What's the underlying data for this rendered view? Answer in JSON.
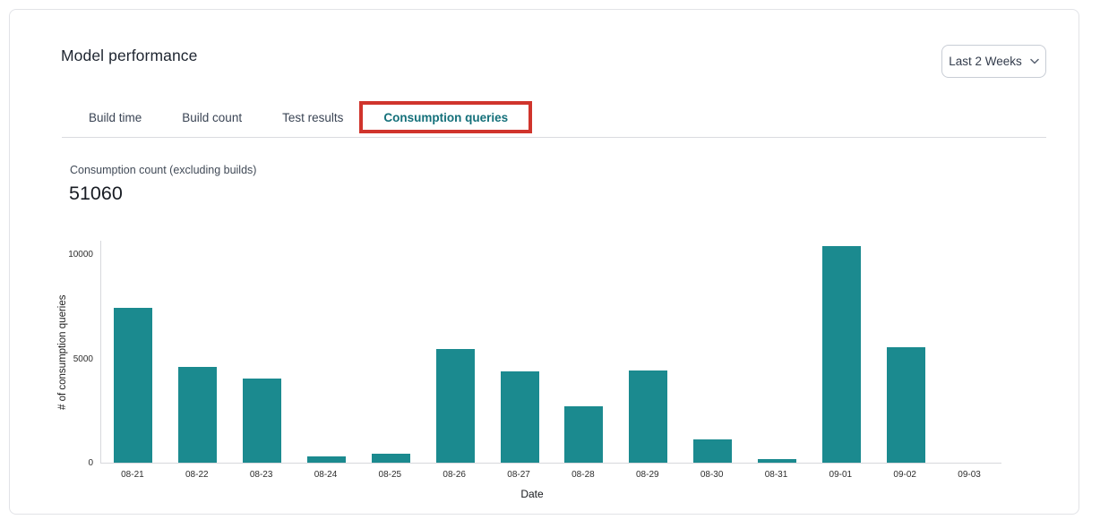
{
  "header": {
    "title": "Model performance",
    "time_range": {
      "value": "Last 2 Weeks",
      "icon": "chevron-down"
    }
  },
  "tabs": [
    {
      "label": "Build time",
      "active": false
    },
    {
      "label": "Build count",
      "active": false
    },
    {
      "label": "Test results",
      "active": false
    },
    {
      "label": "Consumption queries",
      "active": true,
      "annotated": true
    }
  ],
  "metric": {
    "label": "Consumption count (excluding builds)",
    "value": "51060"
  },
  "chart_data": {
    "type": "bar",
    "title": "",
    "xlabel": "Date",
    "ylabel": "# of consumption queries",
    "categories": [
      "08-21",
      "08-22",
      "08-23",
      "08-24",
      "08-25",
      "08-26",
      "08-27",
      "08-28",
      "08-29",
      "08-30",
      "08-31",
      "09-01",
      "09-02",
      "09-03"
    ],
    "values": [
      7420,
      4580,
      4040,
      320,
      440,
      5480,
      4370,
      2690,
      4440,
      1120,
      190,
      10420,
      5550,
      0
    ],
    "yticks": [
      0,
      5000,
      10000
    ],
    "ylim": [
      0,
      10700
    ],
    "grid": false,
    "legend": false,
    "bar_color": "#1b8a8f"
  },
  "colors": {
    "bar_teal": "#1b8a8f",
    "active_tab_teal": "#14707a",
    "inactive_tab_text": "#3a4454",
    "annotation_red": "#d0342c",
    "card_border": "#e2e3e7",
    "axis_line": "#d7d8dc"
  }
}
